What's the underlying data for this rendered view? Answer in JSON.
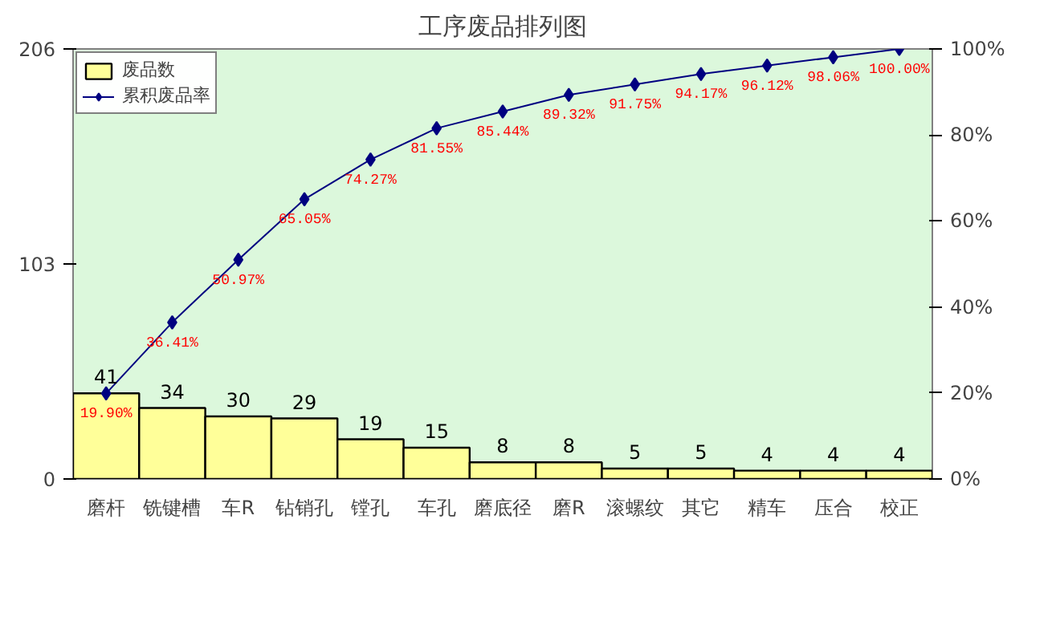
{
  "chart_data": {
    "type": "bar",
    "title": "工序废品排列图",
    "categories": [
      "磨杆",
      "铣键槽",
      "车R",
      "钻销孔",
      "镗孔",
      "车孔",
      "磨底径",
      "磨R",
      "滚螺纹",
      "其它",
      "精车",
      "压合",
      "校正"
    ],
    "series": [
      {
        "name": "废品数",
        "color": "#ffff99",
        "values": [
          41,
          34,
          30,
          29,
          19,
          15,
          8,
          8,
          5,
          5,
          4,
          4,
          4
        ],
        "value_labels": [
          "41",
          "34",
          "30",
          "29",
          "19",
          "15",
          "8",
          "8",
          "5",
          "5",
          "4",
          "4",
          "4"
        ]
      },
      {
        "name": "累积废品率",
        "type": "line",
        "axis": "y2",
        "color": "#000080",
        "marker": "diamond",
        "values": [
          19.9,
          36.41,
          50.97,
          65.05,
          74.27,
          81.55,
          85.44,
          89.32,
          91.75,
          94.17,
          96.12,
          98.06,
          100.0
        ],
        "value_labels": [
          "19.90%",
          "36.41%",
          "50.97%",
          "65.05%",
          "74.27%",
          "81.55%",
          "85.44%",
          "89.32%",
          "91.75%",
          "94.17%",
          "96.12%",
          "98.06%",
          "100.00%"
        ]
      }
    ],
    "ylim": [
      0,
      206
    ],
    "yticks": [
      0,
      103,
      206
    ],
    "y2lim": [
      0,
      100
    ],
    "y2ticks": [
      {
        "value": 0,
        "label": "0%"
      },
      {
        "value": 20,
        "label": "20%"
      },
      {
        "value": 40,
        "label": "40%"
      },
      {
        "value": 60,
        "label": "60%"
      },
      {
        "value": 80,
        "label": "80%"
      },
      {
        "value": 100,
        "label": "100%"
      }
    ],
    "grid": false,
    "legend": "top left"
  }
}
